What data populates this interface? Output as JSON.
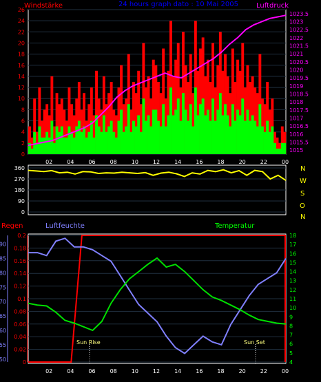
{
  "colors": {
    "wind_label": "#ff0000",
    "title": "#0000ff",
    "pressure": "#ff00ff",
    "wind_avg": "#00ff00",
    "wind_gust": "#ff0000",
    "direction": "#ffff00",
    "rain": "#ff0000",
    "humidity": "#8080ff",
    "temperature": "#00e000",
    "axis_white": "#ffffff"
  },
  "labels": {
    "wind": "Windstärke",
    "title": "24 hours graph dato : 10 Mai 2005",
    "pressure": "Luftdruck",
    "rain": "Regen",
    "humidity": "Luftfeuchte",
    "temperature": "Temperatur",
    "sun_rise": "Sun Rise",
    "sun_set": "Sun Set",
    "compass": [
      "N",
      "W",
      "S",
      "O",
      "N"
    ]
  },
  "chart_data": [
    {
      "type": "bar",
      "name": "wind",
      "x_tick_labels": [
        "02",
        "04",
        "06",
        "08",
        "10",
        "12",
        "14",
        "16",
        "18",
        "20",
        "22",
        "00"
      ],
      "y_left_ticks": [
        0,
        2,
        4,
        6,
        8,
        10,
        12,
        14,
        16,
        18,
        20,
        22,
        24,
        26
      ],
      "y_left_lim": [
        0,
        26
      ],
      "y_right_ticks": [
        1015,
        1015.5,
        1016,
        1016.5,
        1017,
        1017.5,
        1018,
        1018.5,
        1019,
        1019.5,
        1020,
        1020.5,
        1021,
        1021.5,
        1022,
        1022.5,
        1023,
        1023.5
      ],
      "y_right_lim": [
        1014.75,
        1023.75
      ],
      "gust_values": [
        5,
        3,
        10,
        4,
        12,
        6,
        8,
        9,
        7,
        14,
        5,
        11,
        9,
        10,
        8,
        6,
        12,
        9,
        7,
        10,
        13,
        8,
        11,
        6,
        9,
        12,
        7,
        15,
        10,
        8,
        14,
        9,
        11,
        13,
        8,
        7,
        12,
        16,
        9,
        10,
        18,
        8,
        13,
        11,
        15,
        9,
        20,
        12,
        14,
        10,
        17,
        16,
        13,
        11,
        19,
        10,
        15,
        24,
        14,
        17,
        20,
        12,
        22,
        16,
        13,
        18,
        11,
        24,
        15,
        19,
        21,
        14,
        17,
        13,
        20,
        12,
        16,
        22,
        15,
        18,
        14,
        11,
        19,
        13,
        17,
        15,
        20,
        12,
        16,
        13,
        14,
        12,
        11,
        18,
        10,
        9,
        13,
        8,
        10,
        4,
        3,
        2,
        5,
        4
      ],
      "avg_values": [
        2,
        1,
        4,
        2,
        5,
        3,
        3,
        4,
        3,
        6,
        2,
        5,
        4,
        5,
        3,
        3,
        5,
        4,
        3,
        5,
        6,
        4,
        5,
        3,
        4,
        6,
        3,
        7,
        5,
        4,
        7,
        4,
        5,
        6,
        4,
        3,
        6,
        8,
        4,
        5,
        9,
        4,
        6,
        5,
        7,
        4,
        10,
        6,
        7,
        5,
        8,
        8,
        6,
        5,
        9,
        5,
        7,
        12,
        7,
        8,
        10,
        6,
        11,
        8,
        6,
        9,
        5,
        12,
        7,
        9,
        10,
        7,
        8,
        6,
        10,
        6,
        8,
        11,
        7,
        9,
        7,
        5,
        9,
        6,
        8,
        7,
        10,
        6,
        8,
        6,
        7,
        6,
        5,
        9,
        5,
        4,
        6,
        4,
        5,
        2,
        1,
        1,
        2,
        2
      ],
      "pressure_values": [
        1015.3,
        1015.4,
        1015.5,
        1015.6,
        1015.8,
        1016.0,
        1016.2,
        1016.4,
        1016.7,
        1017.2,
        1017.7,
        1018.3,
        1018.7,
        1019.0,
        1019.2,
        1019.4,
        1019.6,
        1019.8,
        1019.6,
        1019.5,
        1019.8,
        1020.1,
        1020.4,
        1020.7,
        1021.1,
        1021.6,
        1022.0,
        1022.5,
        1022.8,
        1023.0,
        1023.2,
        1023.3,
        1023.4
      ]
    },
    {
      "type": "line",
      "name": "direction",
      "y_ticks": [
        0,
        90,
        180,
        270,
        360
      ],
      "y_lim": [
        0,
        360
      ],
      "values": [
        340,
        335,
        330,
        338,
        320,
        325,
        310,
        330,
        328,
        315,
        320,
        318,
        325,
        320,
        315,
        322,
        300,
        318,
        325,
        312,
        290,
        320,
        310,
        340,
        330,
        345,
        320,
        338,
        300,
        340,
        330,
        270,
        300,
        258
      ]
    },
    {
      "type": "line",
      "name": "climate",
      "x_tick_labels": [
        "02",
        "04",
        "06",
        "08",
        "10",
        "12",
        "14",
        "16",
        "18",
        "20",
        "22",
        "00"
      ],
      "rain_ticks": [
        0,
        0.02,
        0.04,
        0.06,
        0.08,
        0.1,
        0.12,
        0.14,
        0.16,
        0.18,
        0.2
      ],
      "rain_lim": [
        0,
        0.2
      ],
      "humidity_ticks": [
        50,
        55,
        60,
        65,
        70,
        75,
        80,
        85,
        90
      ],
      "humidity_lim": [
        49,
        93
      ],
      "temperature_ticks": [
        4,
        5,
        6,
        7,
        8,
        9,
        10,
        11,
        12,
        13,
        14,
        15,
        16,
        17,
        18
      ],
      "temperature_lim": [
        4,
        18
      ],
      "rain_values": [
        0,
        0,
        0,
        0,
        0,
        0.2,
        0.2,
        0.2,
        0.2,
        0.2,
        0.2,
        0.2,
        0.2,
        0.2,
        0.2,
        0.2,
        0.2,
        0.2,
        0.2,
        0.2,
        0.2,
        0.2,
        0.2,
        0.2,
        0.2
      ],
      "humidity_values": [
        87,
        87,
        86,
        91,
        92,
        89,
        89,
        88,
        86,
        84,
        79,
        74,
        69,
        66,
        63,
        58,
        54,
        52,
        55,
        58,
        56,
        55,
        62,
        67,
        72,
        76,
        78,
        80,
        85
      ],
      "temperature_values": [
        10.5,
        10.3,
        10.2,
        9.5,
        8.6,
        8.3,
        7.9,
        7.5,
        8.5,
        10.5,
        12.0,
        13.2,
        14.0,
        14.8,
        15.5,
        14.5,
        14.8,
        14.0,
        13.0,
        12.0,
        11.2,
        10.8,
        10.3,
        9.8,
        9.2,
        8.7,
        8.5,
        8.3,
        8.2
      ]
    }
  ]
}
